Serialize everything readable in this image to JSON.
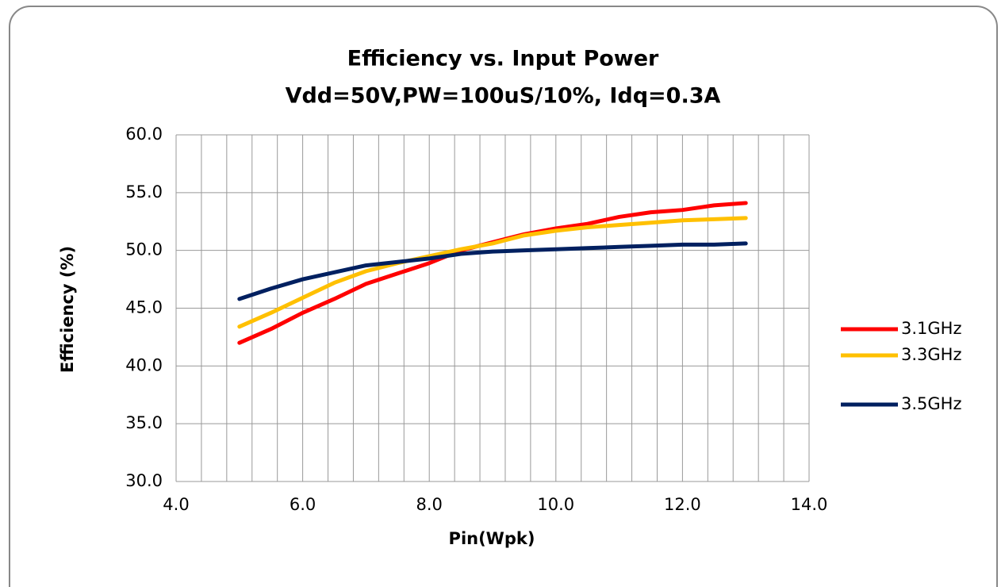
{
  "chart_data": {
    "type": "line",
    "title": "Efficiency vs. Input Power",
    "subtitle": "Vdd=50V,PW=100uS/10%, Idq=0.3A",
    "x_label": "Pin(Wpk)",
    "y_label": "Efficiency (%)",
    "x": [
      5,
      5.5,
      6,
      6.5,
      7,
      7.5,
      8,
      8.5,
      9,
      9.5,
      10,
      10.5,
      11,
      11.5,
      12,
      12.5,
      13
    ],
    "series": [
      {
        "name": "3.1GHz",
        "color": "#ff0000",
        "values": [
          42.0,
          43.2,
          44.6,
          45.8,
          47.1,
          48.0,
          48.9,
          50.0,
          50.7,
          51.4,
          51.9,
          52.3,
          52.9,
          53.3,
          53.5,
          53.9,
          54.1
        ]
      },
      {
        "name": "3.3GHz",
        "color": "#ffc000",
        "values": [
          43.4,
          44.6,
          45.9,
          47.2,
          48.2,
          48.9,
          49.5,
          50.1,
          50.6,
          51.3,
          51.7,
          52.0,
          52.2,
          52.4,
          52.6,
          52.7,
          52.8
        ]
      },
      {
        "name": "3.5GHz",
        "color": "#002060",
        "values": [
          45.8,
          46.7,
          47.5,
          48.1,
          48.7,
          49.0,
          49.3,
          49.7,
          49.9,
          50.0,
          50.1,
          50.2,
          50.3,
          50.4,
          50.5,
          50.5,
          50.6
        ]
      }
    ],
    "xlim": [
      4,
      14
    ],
    "ylim": [
      30,
      60
    ],
    "xticks": [
      {
        "value": 4,
        "label": "4.0"
      },
      {
        "value": 6,
        "label": "6.0"
      },
      {
        "value": 8,
        "label": "8.0"
      },
      {
        "value": 10,
        "label": "10.0"
      },
      {
        "value": 12,
        "label": "12.0"
      },
      {
        "value": 14,
        "label": "14.0"
      }
    ],
    "xminor_ticks": [
      4.4,
      4.8,
      5.2,
      5.6,
      6.4,
      6.8,
      7.2,
      7.6,
      8.4,
      8.8,
      9.2,
      9.6,
      10.4,
      10.8,
      11.2,
      11.6,
      12.4,
      12.8,
      13.2,
      13.6
    ],
    "yticks": [
      {
        "value": 30,
        "label": "30.0"
      },
      {
        "value": 35,
        "label": "35.0"
      },
      {
        "value": 40,
        "label": "40.0"
      },
      {
        "value": 45,
        "label": "45.0"
      },
      {
        "value": 50,
        "label": "50.0"
      },
      {
        "value": 55,
        "label": "55.0"
      },
      {
        "value": 60,
        "label": "60.0"
      }
    ],
    "grid": true,
    "legend": "right"
  }
}
